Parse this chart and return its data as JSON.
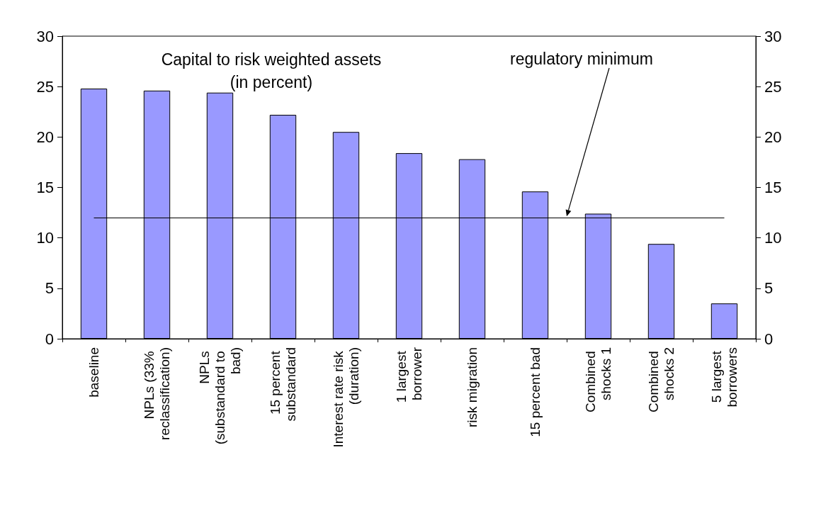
{
  "chart_data": {
    "type": "bar",
    "title": "Capital to risk weighted assets\n(in percent)",
    "categories": [
      "baseline",
      "NPLs (33% reclassification)",
      "NPLs (substandard to bad)",
      "15 percent substandard",
      "Interest rate risk (duration)",
      "1 largest borrower",
      "risk migration",
      "15 percent bad",
      "Combined shocks 1",
      "Combined shocks 2",
      "5 largest borrowers"
    ],
    "values": [
      24.8,
      24.6,
      24.4,
      22.2,
      20.5,
      18.4,
      17.8,
      14.6,
      12.4,
      9.4,
      3.5
    ],
    "color": "#9999ff",
    "ylim": [
      0,
      30
    ],
    "yticks": [
      0,
      5,
      10,
      15,
      20,
      25,
      30
    ],
    "y2lim": [
      0,
      30
    ],
    "y2ticks": [
      0,
      5,
      10,
      15,
      20,
      25,
      30
    ],
    "ref_lines": [
      {
        "axis": "y",
        "value": 12,
        "label": "regulatory minimum",
        "color": "#000000"
      }
    ],
    "grid": false
  }
}
